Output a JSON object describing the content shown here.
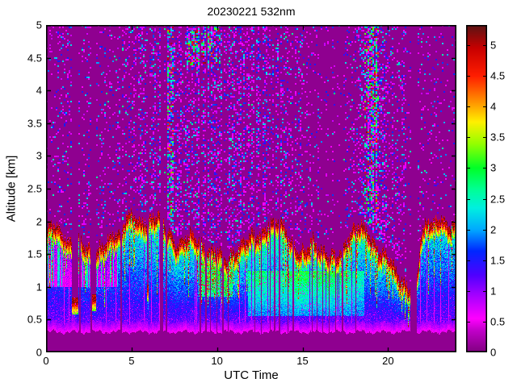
{
  "chart_data": {
    "type": "heatmap",
    "title": "20230221 532nm",
    "xlabel": "UTC Time",
    "ylabel": "Altitude [km]",
    "xlim": [
      0,
      24
    ],
    "ylim": [
      0,
      5
    ],
    "x_ticks": [
      0,
      5,
      10,
      15,
      20
    ],
    "y_ticks": [
      0,
      0.5,
      1,
      1.5,
      2,
      2.5,
      3,
      3.5,
      4,
      4.5,
      5
    ],
    "colorbar": {
      "ticks": [
        0,
        0.5,
        1,
        1.5,
        2,
        2.5,
        3,
        3.5,
        4,
        4.5,
        5
      ],
      "clim": [
        0,
        5.33
      ],
      "colormap_stops": [
        [
          0.0,
          "#800080"
        ],
        [
          0.35,
          "#C000C8"
        ],
        [
          0.55,
          "#FF00FF"
        ],
        [
          0.95,
          "#A000FF"
        ],
        [
          1.25,
          "#5000FF"
        ],
        [
          1.65,
          "#0028FF"
        ],
        [
          2.0,
          "#00AAFF"
        ],
        [
          2.35,
          "#00F0E0"
        ],
        [
          2.65,
          "#00FF96"
        ],
        [
          3.0,
          "#00FF28"
        ],
        [
          3.4,
          "#96FF00"
        ],
        [
          3.75,
          "#FFF000"
        ],
        [
          4.1,
          "#FF8C00"
        ],
        [
          4.5,
          "#FF1E00"
        ],
        [
          4.95,
          "#C80000"
        ],
        [
          5.33,
          "#5A1414"
        ]
      ]
    },
    "background_value": 0.08,
    "surface_purple_top_km": 0.3,
    "layer_base_km": 0.45,
    "boundary_layer_top": {
      "t": [
        0,
        0.4,
        0.9,
        1.3,
        1.8,
        2.3,
        2.8,
        3.3,
        3.8,
        4.3,
        4.7,
        5.1,
        5.5,
        6.0,
        6.5,
        6.9,
        7.2,
        7.6,
        8.0,
        8.5,
        9.0,
        9.5,
        10.0,
        10.5,
        11.0,
        11.5,
        12.0,
        12.5,
        13.0,
        13.5,
        14.0,
        14.4,
        14.8,
        15.2,
        15.6,
        16.0,
        16.5,
        17.0,
        17.5,
        18.0,
        18.4,
        18.8,
        19.2,
        19.6,
        20.0,
        20.4,
        20.8,
        21.2,
        21.6,
        21.9,
        22.3,
        22.7,
        23.1,
        23.5,
        23.8,
        24
      ],
      "z": [
        1.85,
        1.95,
        1.8,
        1.65,
        1.75,
        1.6,
        1.5,
        1.6,
        1.75,
        1.8,
        2.05,
        2.1,
        1.95,
        2.0,
        2.1,
        1.95,
        1.8,
        1.6,
        1.7,
        1.8,
        1.65,
        1.5,
        1.55,
        1.4,
        1.5,
        1.65,
        1.8,
        1.75,
        1.95,
        2.0,
        1.85,
        1.6,
        1.5,
        1.55,
        1.7,
        1.55,
        1.5,
        1.45,
        1.65,
        1.9,
        1.95,
        1.8,
        1.6,
        1.5,
        1.45,
        1.25,
        1.05,
        0.95,
        0.9,
        1.75,
        2.0,
        1.95,
        2.05,
        1.9,
        1.95,
        1.9
      ]
    },
    "upper_noise_density": {
      "t": [
        0,
        0.7,
        1.2,
        2.0,
        2.6,
        3.2,
        4.0,
        4.6,
        5.4,
        6.2,
        7.0,
        7.4,
        8.0,
        8.6,
        9.3,
        10.0,
        10.8,
        11.6,
        12.4,
        13.2,
        14.0,
        14.8,
        15.4,
        16.2,
        17.0,
        17.8,
        18.4,
        18.8,
        19.3,
        19.8,
        20.4,
        21.0,
        21.7,
        22.4,
        23.2,
        24
      ],
      "p": [
        0.05,
        0.09,
        0.13,
        0.1,
        0.13,
        0.11,
        0.1,
        0.17,
        0.2,
        0.22,
        0.3,
        0.2,
        0.22,
        0.26,
        0.3,
        0.27,
        0.3,
        0.28,
        0.25,
        0.27,
        0.24,
        0.2,
        0.12,
        0.08,
        0.08,
        0.11,
        0.18,
        0.32,
        0.3,
        0.22,
        0.2,
        0.12,
        0.07,
        0.08,
        0.06,
        0.06
      ]
    },
    "interior_strength": {
      "t": [
        0,
        2,
        4,
        6,
        8,
        10,
        12,
        14,
        16,
        18,
        19.5,
        21,
        22,
        23,
        24
      ],
      "s": [
        0.7,
        0.75,
        0.85,
        0.95,
        1.0,
        1.05,
        1.1,
        1.15,
        1.1,
        1.05,
        1.0,
        0.9,
        0.8,
        0.85,
        0.85
      ]
    },
    "spike_prob": {
      "t": [
        0,
        1,
        2,
        3,
        4,
        5,
        6,
        7,
        8,
        9,
        10,
        11,
        12,
        13,
        14,
        15,
        16,
        17,
        18,
        19,
        20,
        21,
        22,
        23,
        24
      ],
      "p": [
        0.5,
        0.45,
        0.42,
        0.45,
        0.3,
        0.35,
        0.3,
        0.35,
        0.4,
        0.5,
        0.55,
        0.35,
        0.3,
        0.3,
        0.35,
        0.45,
        0.4,
        0.3,
        0.35,
        0.55,
        0.6,
        0.4,
        0.35,
        0.3,
        0.3
      ]
    },
    "data_gaps_utc": [
      [
        1.9,
        2.0
      ],
      [
        2.58,
        2.66
      ],
      [
        4.3,
        4.44
      ],
      [
        6.64,
        6.82
      ],
      [
        6.98,
        7.06
      ],
      [
        8.93,
        9.03
      ],
      [
        9.3,
        9.38
      ],
      [
        9.55,
        9.62
      ],
      [
        9.93,
        10.0
      ],
      [
        10.28,
        10.35
      ],
      [
        10.6,
        10.66
      ],
      [
        12.17,
        12.23
      ],
      [
        12.52,
        12.58
      ],
      [
        13.07,
        13.13
      ],
      [
        13.32,
        13.38
      ],
      [
        13.6,
        13.66
      ],
      [
        14.08,
        14.14
      ],
      [
        14.4,
        14.47
      ],
      [
        15.52,
        15.58
      ],
      [
        15.78,
        15.85
      ],
      [
        16.12,
        16.19
      ],
      [
        16.52,
        16.58
      ],
      [
        16.88,
        16.95
      ],
      [
        17.28,
        17.35
      ],
      [
        18.06,
        18.12
      ],
      [
        21.3,
        21.68
      ]
    ],
    "partial_gaps_utc": [
      [
        1.5,
        1.86,
        0.8
      ],
      [
        2.66,
        2.9,
        0.85
      ],
      [
        5.86,
        5.98,
        1.0
      ]
    ],
    "noise_hotspots": [
      [
        7.06,
        7.4,
        1.9,
        2.2
      ],
      [
        8.2,
        10.2,
        4.35,
        2.0
      ],
      [
        18.55,
        19.45,
        1.9,
        2.0
      ]
    ],
    "seed": 20230221
  }
}
